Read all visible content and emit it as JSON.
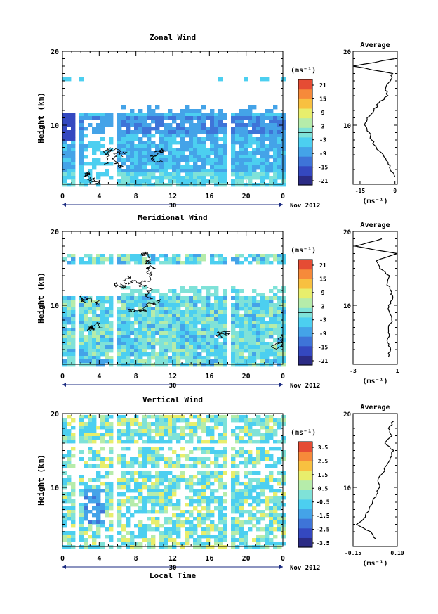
{
  "colors": [
    "#2b2b85",
    "#3448c0",
    "#3e74d8",
    "#44a3e8",
    "#4ccff0",
    "#7fe2d8",
    "#b6ecaa",
    "#e8ee6c",
    "#f8c040",
    "#f68a3a",
    "#e54c34"
  ],
  "panels": [
    {
      "title": "Zonal Wind",
      "ylabel": "Height (km)",
      "unit": "(ms⁻¹)",
      "colorbar_ticks": [
        "21",
        "15",
        "9",
        "3",
        "-3",
        "-9",
        "-15",
        "-21"
      ],
      "yticks": [
        "20",
        "10"
      ],
      "xticks": [
        "0",
        "4",
        "8",
        "12",
        "16",
        "20",
        "0"
      ],
      "date_label": "30",
      "month_label": "Nov 2012",
      "avg_title": "Average",
      "avg_yticks": [
        "20",
        "10"
      ],
      "avg_xticks": [
        "-15",
        "0"
      ],
      "avg_unit": "(ms⁻¹)"
    },
    {
      "title": "Meridional Wind",
      "ylabel": "Height (km)",
      "unit": "(ms⁻¹)",
      "colorbar_ticks": [
        "21",
        "15",
        "9",
        "3",
        "-3",
        "-9",
        "-15",
        "-21"
      ],
      "yticks": [
        "20",
        "10"
      ],
      "xticks": [
        "0",
        "4",
        "8",
        "12",
        "16",
        "20",
        "0"
      ],
      "date_label": "30",
      "month_label": "Nov 2012",
      "avg_title": "Average",
      "avg_yticks": [
        "20",
        "10"
      ],
      "avg_xticks": [
        "-3",
        "1"
      ],
      "avg_unit": "(ms⁻¹)"
    },
    {
      "title": "Vertical Wind",
      "ylabel": "Height (km)",
      "unit": "(ms⁻¹)",
      "colorbar_ticks": [
        "3.5",
        "2.5",
        "1.5",
        "0.5",
        "-0.5",
        "-1.5",
        "-2.5",
        "-3.5"
      ],
      "yticks": [
        "20",
        "10"
      ],
      "xticks": [
        "0",
        "4",
        "8",
        "12",
        "16",
        "20",
        "0"
      ],
      "date_label": "30",
      "month_label": "Nov 2012",
      "avg_title": "Average",
      "avg_yticks": [
        "20",
        "10"
      ],
      "avg_xticks": [
        "-0.15",
        "0.10"
      ],
      "avg_unit": "(ms⁻¹)"
    }
  ],
  "xlabel": "Local Time",
  "chart_data": [
    {
      "type": "heatmap",
      "title": "Zonal Wind",
      "xlabel": "",
      "ylabel": "Height (km)",
      "x_range_hours": [
        0,
        24
      ],
      "ylim": [
        2,
        20
      ],
      "clim": [
        -24,
        24
      ],
      "typical_values": {
        "upper_jet_10km": -12,
        "lower_levels": -6,
        "near_surface": -2
      },
      "average_profile": {
        "xlim": [
          -18,
          1
        ],
        "ylim": [
          2,
          20
        ],
        "heights": [
          3,
          4,
          5,
          6,
          7,
          8,
          9,
          10,
          11,
          12,
          13,
          14,
          15,
          16,
          17,
          18,
          19
        ],
        "values": [
          0,
          -2,
          -3,
          -5,
          -8,
          -10,
          -11,
          -13,
          -12,
          -9,
          -7,
          -3,
          -4,
          -2,
          -1,
          -18,
          0
        ]
      }
    },
    {
      "type": "heatmap",
      "title": "Meridional Wind",
      "xlabel": "",
      "ylabel": "Height (km)",
      "x_range_hours": [
        0,
        24
      ],
      "ylim": [
        2,
        20
      ],
      "clim": [
        -24,
        24
      ],
      "typical_values": {
        "mid_levels": 0,
        "lower_levels": -3
      },
      "average_profile": {
        "xlim": [
          -3,
          1
        ],
        "ylim": [
          2,
          20
        ],
        "heights": [
          3,
          4,
          5,
          6,
          7,
          8,
          9,
          10,
          11,
          12,
          13,
          14,
          15,
          16,
          17,
          18,
          19
        ],
        "values": [
          0.2,
          0.4,
          0.1,
          0.3,
          0.2,
          0.5,
          0.3,
          0.2,
          0.6,
          0.4,
          0.1,
          0.3,
          -0.6,
          -0.9,
          1,
          -2.8,
          -0.4
        ]
      }
    },
    {
      "type": "heatmap",
      "title": "Vertical Wind",
      "xlabel": "Local Time",
      "ylabel": "Height (km)",
      "x_range_hours": [
        0,
        24
      ],
      "ylim": [
        2,
        20
      ],
      "clim": [
        -4,
        4
      ],
      "typical_values": {
        "mid_levels": 0.2,
        "early_hours_low": -2
      },
      "average_profile": {
        "xlim": [
          -0.15,
          0.1
        ],
        "ylim": [
          2,
          20
        ],
        "heights": [
          3,
          4,
          5,
          6,
          7,
          8,
          9,
          10,
          11,
          12,
          13,
          14,
          15,
          16,
          17,
          18,
          19
        ],
        "values": [
          -0.02,
          -0.05,
          -0.13,
          -0.08,
          -0.06,
          -0.04,
          -0.02,
          0.0,
          -0.01,
          0.02,
          0.04,
          0.06,
          0.08,
          0.03,
          0.07,
          0.05,
          0.08
        ]
      }
    }
  ]
}
